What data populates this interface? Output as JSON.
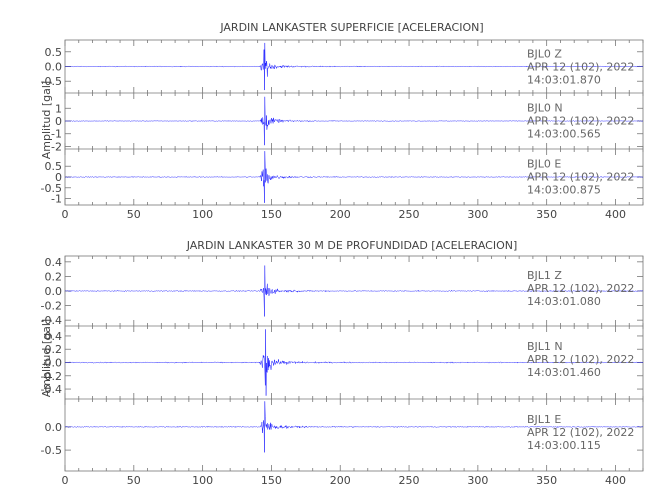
{
  "chart_data": [
    {
      "type": "line",
      "title": "JARDIN LANKASTER SUPERFICIE [ACELERACION]",
      "ylabel": "Amplitud [gal]",
      "xlabel": "",
      "xlim": [
        0,
        420
      ],
      "xticks": [
        0,
        50,
        100,
        150,
        200,
        250,
        300,
        350,
        400
      ],
      "line_color": "#0000ff",
      "panels": [
        {
          "name": "Z",
          "ylim": [
            -0.9,
            0.9
          ],
          "yticks": [
            0.5,
            0.0,
            -0.5
          ],
          "ytick_labels": [
            "0.5",
            "0.0",
            "-0.5"
          ],
          "annotation": [
            "BJL0   Z",
            "APR 12 (102), 2022",
            "14:03:01.870"
          ],
          "trace": {
            "event_onset": 141,
            "peak_time": 145,
            "peak_amplitude": 0.8,
            "noise_amplitude": 0.02
          }
        },
        {
          "name": "N",
          "ylim": [
            -2.2,
            2.2
          ],
          "yticks": [
            1,
            0,
            -1,
            -2
          ],
          "ytick_labels": [
            "1",
            "0",
            "-1",
            "-2"
          ],
          "annotation": [
            "BJL0   N",
            "APR 12 (102), 2022",
            "14:03:00.565"
          ],
          "trace": {
            "event_onset": 141,
            "peak_time": 145,
            "peak_amplitude": 1.9,
            "noise_amplitude": 0.04
          }
        },
        {
          "name": "E",
          "ylim": [
            -1.3,
            1.3
          ],
          "yticks": [
            0.5,
            0.0,
            -0.5,
            -1.0
          ],
          "ytick_labels": [
            "0.5",
            "0",
            "-0.5",
            "-1"
          ],
          "annotation": [
            "BJL0   E",
            "APR 12 (102), 2022",
            "14:03:00.875"
          ],
          "trace": {
            "event_onset": 141,
            "peak_time": 145,
            "peak_amplitude": 1.2,
            "noise_amplitude": 0.03
          }
        }
      ]
    },
    {
      "type": "line",
      "title": "JARDIN LANKASTER 30 M DE PROFUNDIDAD [ACELERACION]",
      "ylabel": "Amplitud [gal]",
      "xlabel": "",
      "xlim": [
        0,
        420
      ],
      "xticks": [
        0,
        50,
        100,
        150,
        200,
        250,
        300,
        350,
        400
      ],
      "line_color": "#0000ff",
      "panels": [
        {
          "name": "Z",
          "ylim": [
            -0.48,
            0.48
          ],
          "yticks": [
            0.4,
            0.2,
            0.0,
            -0.2,
            -0.4
          ],
          "ytick_labels": [
            "0.4",
            "0.2",
            "0.0",
            "-0.2",
            "-0.4"
          ],
          "annotation": [
            "BJL1   Z",
            "APR 12 (102), 2022",
            "14:03:01.080"
          ],
          "trace": {
            "event_onset": 141,
            "peak_time": 145,
            "peak_amplitude": 0.35,
            "noise_amplitude": 0.01
          }
        },
        {
          "name": "N",
          "ylim": [
            -0.55,
            0.55
          ],
          "yticks": [
            0.4,
            0.2,
            0.0,
            -0.2,
            -0.4
          ],
          "ytick_labels": [
            "0.4",
            "0.2",
            "0.0",
            "-0.2",
            "-0.4"
          ],
          "annotation": [
            "BJL1   N",
            "APR 12 (102), 2022",
            "14:03:01.460"
          ],
          "trace": {
            "event_onset": 141,
            "peak_time": 146,
            "peak_amplitude": 0.5,
            "noise_amplitude": 0.012
          }
        },
        {
          "name": "E",
          "ylim": [
            -0.95,
            0.6
          ],
          "yticks": [
            0.0,
            -0.5
          ],
          "ytick_labels": [
            "0.0",
            "-0.5"
          ],
          "annotation": [
            "BJL1   E",
            "APR 12 (102), 2022",
            "14:03:00.115"
          ],
          "trace": {
            "event_onset": 141,
            "peak_time": 145,
            "peak_amplitude": 0.55,
            "noise_amplitude": 0.015
          }
        }
      ]
    }
  ]
}
